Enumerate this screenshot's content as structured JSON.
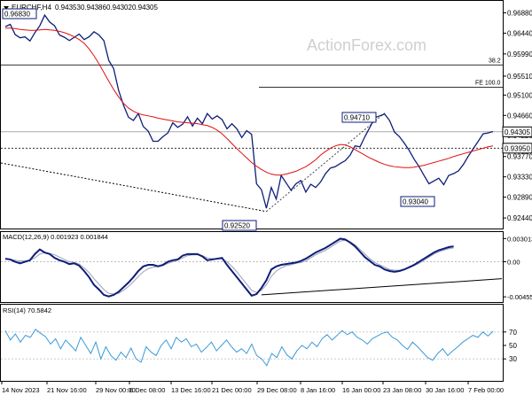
{
  "chart_data": {
    "type": "line",
    "symbol": "EURCHF,H4",
    "ohlc_header": {
      "open": "0.94353",
      "high": "0.94386",
      "low": "0.94302",
      "close": "0.94305"
    },
    "watermark": "ActionForex.com",
    "x_tick_labels": [
      "14 Nov 2023",
      "21 Nov 16:00",
      "29 Nov 00:00",
      "6 Dec 08:00",
      "13 Dec 16:00",
      "21 Dec 00:00",
      "29 Dec 08:00",
      "8 Jan 16:00",
      "16 Jan 00:00",
      "23 Jan 08:00",
      "30 Jan 16:00",
      "7 Feb 00:00"
    ],
    "price_panel": {
      "ylim": [
        0.9225,
        0.971
      ],
      "y_ticks": [
        "0.96880",
        "0.96440",
        "0.95990",
        "0.95510",
        "0.95100",
        "0.94660",
        "0.94220",
        "0.93770",
        "0.93330",
        "0.92890",
        "0.92440"
      ],
      "current_price_label": "0.94305",
      "current_price": 0.94305,
      "support_label": "0.93950",
      "support": 0.9395,
      "fib_levels": [
        {
          "label": "38.2",
          "value": 0.9575
        },
        {
          "label": "FE 100.0",
          "value": 0.9527
        }
      ],
      "annotations": [
        {
          "label": "0.96830",
          "value": 0.9683
        },
        {
          "label": "0.94710",
          "value": 0.9471
        },
        {
          "label": "0.92520",
          "value": 0.9252
        },
        {
          "label": "0.93040",
          "value": 0.9304
        }
      ],
      "close_series": [
        0.9658,
        0.9663,
        0.9641,
        0.9634,
        0.9636,
        0.9627,
        0.9645,
        0.966,
        0.9683,
        0.9668,
        0.966,
        0.964,
        0.9635,
        0.9628,
        0.9635,
        0.9642,
        0.963,
        0.9636,
        0.9647,
        0.964,
        0.9628,
        0.9585,
        0.9567,
        0.952,
        0.9488,
        0.9462,
        0.9455,
        0.947,
        0.9442,
        0.9432,
        0.941,
        0.941,
        0.942,
        0.9428,
        0.945,
        0.944,
        0.9447,
        0.9463,
        0.9443,
        0.946,
        0.9448,
        0.947,
        0.9458,
        0.9465,
        0.9457,
        0.9437,
        0.9448,
        0.9437,
        0.9418,
        0.9433,
        0.9425,
        0.9318,
        0.9305,
        0.9265,
        0.931,
        0.9285,
        0.9336,
        0.932,
        0.9304,
        0.9318,
        0.9325,
        0.93,
        0.9317,
        0.931,
        0.9322,
        0.934,
        0.9352,
        0.9355,
        0.9362,
        0.9368,
        0.938,
        0.94,
        0.9398,
        0.942,
        0.944,
        0.9461,
        0.9465,
        0.9469,
        0.9455,
        0.943,
        0.942,
        0.9406,
        0.939,
        0.9371,
        0.9355,
        0.9336,
        0.9318,
        0.9324,
        0.933,
        0.9316,
        0.9336,
        0.934,
        0.9346,
        0.936,
        0.9378,
        0.9394,
        0.941,
        0.9426,
        0.9428,
        0.9431
      ],
      "ma_series": [
        0.9655,
        0.9655,
        0.9654,
        0.9652,
        0.9651,
        0.965,
        0.965,
        0.9651,
        0.9652,
        0.9651,
        0.965,
        0.9648,
        0.9645,
        0.9641,
        0.9636,
        0.963,
        0.9622,
        0.961,
        0.9595,
        0.9578,
        0.9559,
        0.954,
        0.9522,
        0.9506,
        0.9492,
        0.9482,
        0.9475,
        0.947,
        0.9467,
        0.9465,
        0.9463,
        0.946,
        0.9458,
        0.9456,
        0.9454,
        0.9452,
        0.9451,
        0.945,
        0.9449,
        0.9448,
        0.9446,
        0.9444,
        0.944,
        0.9434,
        0.9426,
        0.9416,
        0.9405,
        0.9394,
        0.9384,
        0.9374,
        0.9364,
        0.9356,
        0.9349,
        0.9343,
        0.9339,
        0.9337,
        0.9337,
        0.9339,
        0.9342,
        0.9345,
        0.935,
        0.9355,
        0.9362,
        0.937,
        0.938,
        0.9388,
        0.9395,
        0.94,
        0.9403,
        0.9402,
        0.9398,
        0.9392,
        0.9386,
        0.938,
        0.9374,
        0.9369,
        0.9364,
        0.936,
        0.9357,
        0.9355,
        0.9354,
        0.9353,
        0.9353,
        0.9354,
        0.9356,
        0.9358,
        0.9361,
        0.9364,
        0.9367,
        0.937,
        0.9373,
        0.9377,
        0.938,
        0.9383,
        0.9386,
        0.9389,
        0.9392,
        0.9395,
        0.9398,
        0.94
      ]
    },
    "macd_panel": {
      "label": "MACD(12,26,9) 0.001923 0.001844",
      "ylim": [
        -0.005,
        0.0034
      ],
      "y_ticks": [
        "0.003013",
        "0.00",
        "-0.00455"
      ],
      "macd_series": [
        0.0004,
        0.0003,
        0.0,
        -0.0002,
        0.0,
        0.0002,
        0.001,
        0.0016,
        0.0012,
        0.001,
        0.0005,
        0.0002,
        0.0,
        -0.0003,
        -0.0002,
        -0.0005,
        -0.0012,
        -0.002,
        -0.003,
        -0.0036,
        -0.0043,
        -0.0045,
        -0.0043,
        -0.0039,
        -0.0033,
        -0.0027,
        -0.002,
        -0.0012,
        -0.0006,
        -0.0004,
        -0.0004,
        -0.0006,
        -0.0004,
        0.0,
        0.0002,
        0.0003,
        0.0008,
        0.001,
        0.001,
        0.001,
        0.0007,
        0.0002,
        0.0003,
        0.0004,
        0.0005,
        -0.0004,
        -0.0012,
        -0.002,
        -0.0028,
        -0.0036,
        -0.0044,
        -0.0042,
        -0.0034,
        -0.0024,
        -0.001,
        -0.0006,
        -0.0004,
        -0.0003,
        -0.0002,
        -0.0001,
        0.0001,
        0.0004,
        0.0008,
        0.0012,
        0.0015,
        0.0018,
        0.0022,
        0.0026,
        0.003,
        0.0029,
        0.0025,
        0.002,
        0.0013,
        0.0006,
        0.0001,
        -0.0004,
        -0.0006,
        -0.001,
        -0.0012,
        -0.0013,
        -0.0012,
        -0.001,
        -0.0007,
        -0.0004,
        0.0,
        0.0004,
        0.0008,
        0.0012,
        0.0015,
        0.0017,
        0.0019,
        0.002
      ],
      "signal_series": [
        0.0003,
        0.0003,
        0.0002,
        0.0001,
        0.0001,
        0.0002,
        0.0005,
        0.001,
        0.0012,
        0.0011,
        0.0009,
        0.0006,
        0.0003,
        0.0,
        -0.0001,
        -0.0003,
        -0.0008,
        -0.0014,
        -0.0022,
        -0.0029,
        -0.0036,
        -0.0041,
        -0.0042,
        -0.0041,
        -0.0037,
        -0.0032,
        -0.0026,
        -0.0019,
        -0.0013,
        -0.0009,
        -0.0007,
        -0.0006,
        -0.0005,
        -0.0002,
        0.0,
        0.0002,
        0.0005,
        0.0008,
        0.0009,
        0.0009,
        0.0008,
        0.0005,
        0.0004,
        0.0004,
        0.0004,
        0.0,
        -0.0006,
        -0.0013,
        -0.0021,
        -0.0029,
        -0.0037,
        -0.004,
        -0.0037,
        -0.003,
        -0.0019,
        -0.0012,
        -0.0008,
        -0.0005,
        -0.0004,
        -0.0002,
        -0.0001,
        0.0001,
        0.0005,
        0.0009,
        0.0012,
        0.0015,
        0.0019,
        0.0023,
        0.0027,
        0.0028,
        0.0026,
        0.0022,
        0.0016,
        0.001,
        0.0004,
        -0.0001,
        -0.0004,
        -0.0007,
        -0.001,
        -0.0011,
        -0.0011,
        -0.001,
        -0.0008,
        -0.0005,
        -0.0002,
        0.0002,
        0.0006,
        0.001,
        0.0013,
        0.0015,
        0.0017,
        0.0018
      ],
      "trendline": [
        [
          52,
          -0.0043
        ],
        [
          100,
          -0.0022
        ]
      ]
    },
    "rsi_panel": {
      "label": "RSI(14) 70.5842",
      "ylim": [
        0,
        100
      ],
      "y_ticks": [
        "70",
        "50",
        "30"
      ],
      "rsi_series": [
        72,
        58,
        67,
        55,
        65,
        62,
        74,
        68,
        63,
        52,
        60,
        45,
        58,
        50,
        42,
        62,
        50,
        38,
        55,
        30,
        48,
        35,
        28,
        40,
        32,
        46,
        30,
        25,
        48,
        40,
        35,
        50,
        58,
        45,
        62,
        55,
        60,
        48,
        52,
        40,
        47,
        55,
        42,
        50,
        58,
        48,
        40,
        45,
        38,
        52,
        35,
        30,
        20,
        38,
        32,
        48,
        36,
        30,
        42,
        50,
        45,
        55,
        48,
        60,
        66,
        58,
        65,
        72,
        66,
        70,
        62,
        58,
        52,
        60,
        64,
        68,
        70,
        62,
        58,
        50,
        44,
        55,
        48,
        40,
        32,
        28,
        38,
        45,
        35,
        42,
        48,
        55,
        60,
        65,
        62,
        70,
        64,
        71
      ]
    }
  }
}
